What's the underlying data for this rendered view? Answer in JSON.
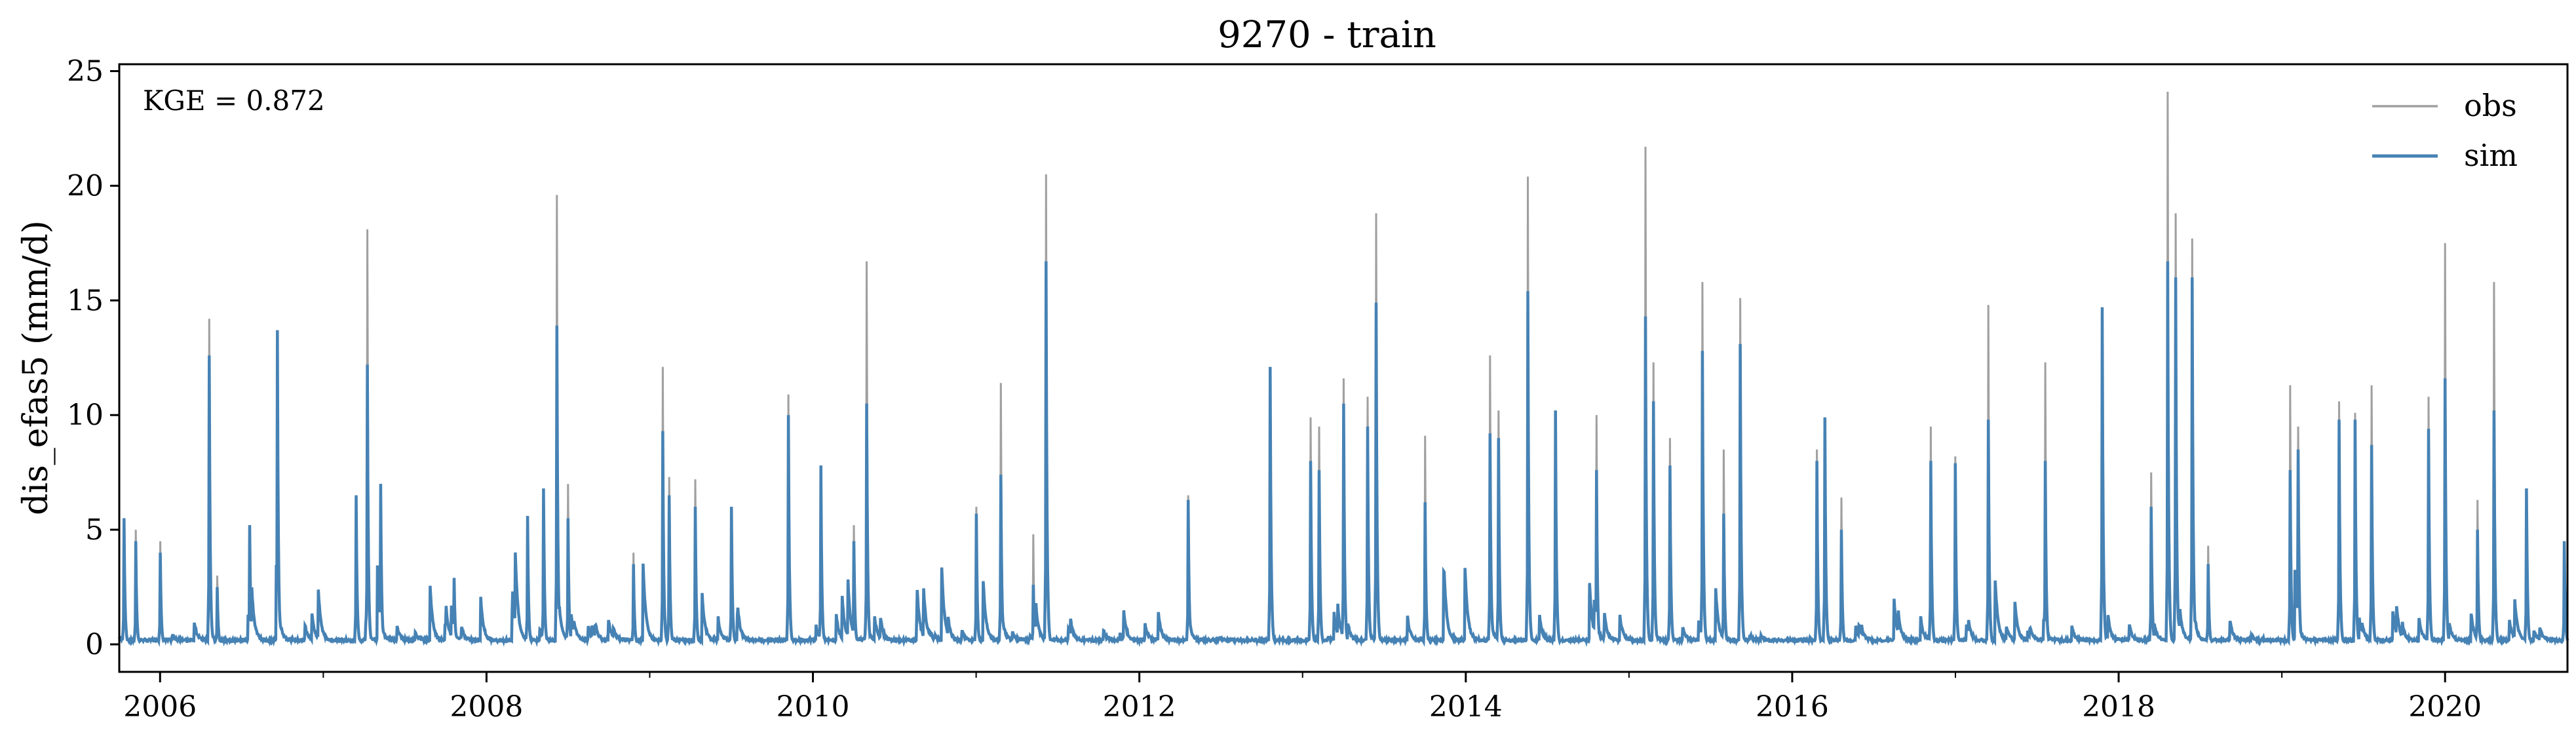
{
  "chart_data": {
    "type": "line",
    "title": "9270 - train",
    "xlabel": "",
    "ylabel": "dis_efas5 (mm/d)",
    "annotation": "KGE = 0.872",
    "xlim": [
      2005.75,
      2020.75
    ],
    "ylim": [
      -1.2,
      25.3
    ],
    "xticks": [
      2006,
      2008,
      2010,
      2012,
      2014,
      2016,
      2018,
      2020
    ],
    "xtick_labels": [
      "2006",
      "2008",
      "2010",
      "2012",
      "2014",
      "2016",
      "2018",
      "2020"
    ],
    "yticks": [
      0,
      5,
      10,
      15,
      20,
      25
    ],
    "ytick_labels": [
      "0",
      "5",
      "10",
      "15",
      "20",
      "25"
    ],
    "grid": false,
    "legend_position": "top-right",
    "colors": {
      "obs": "#a0a0a0",
      "sim": "#4682b4"
    },
    "series": [
      {
        "name": "obs",
        "peaks": [
          [
            2005.78,
            5.5
          ],
          [
            2005.85,
            5.0
          ],
          [
            2006.0,
            4.5
          ],
          [
            2006.3,
            14.2
          ],
          [
            2006.35,
            3.0
          ],
          [
            2006.55,
            5.2
          ],
          [
            2006.72,
            13.7
          ],
          [
            2007.2,
            6.5
          ],
          [
            2007.27,
            18.1
          ],
          [
            2007.35,
            7.0
          ],
          [
            2007.8,
            2.9
          ],
          [
            2008.25,
            5.6
          ],
          [
            2008.35,
            6.8
          ],
          [
            2008.43,
            19.6
          ],
          [
            2008.5,
            7.0
          ],
          [
            2008.9,
            4.0
          ],
          [
            2009.08,
            12.1
          ],
          [
            2009.12,
            7.3
          ],
          [
            2009.28,
            7.2
          ],
          [
            2009.5,
            6.0
          ],
          [
            2009.85,
            10.9
          ],
          [
            2010.05,
            7.8
          ],
          [
            2010.25,
            5.2
          ],
          [
            2010.33,
            16.7
          ],
          [
            2011.0,
            6.0
          ],
          [
            2011.15,
            11.4
          ],
          [
            2011.35,
            4.8
          ],
          [
            2011.43,
            20.5
          ],
          [
            2012.3,
            6.5
          ],
          [
            2012.8,
            12.1
          ],
          [
            2013.05,
            9.9
          ],
          [
            2013.1,
            9.5
          ],
          [
            2013.25,
            11.6
          ],
          [
            2013.4,
            10.8
          ],
          [
            2013.45,
            18.8
          ],
          [
            2013.75,
            9.1
          ],
          [
            2014.15,
            12.6
          ],
          [
            2014.2,
            10.2
          ],
          [
            2014.38,
            20.4
          ],
          [
            2014.55,
            10.2
          ],
          [
            2014.8,
            10.0
          ],
          [
            2015.1,
            21.7
          ],
          [
            2015.15,
            12.3
          ],
          [
            2015.25,
            9.0
          ],
          [
            2015.45,
            15.8
          ],
          [
            2015.58,
            8.5
          ],
          [
            2015.68,
            15.1
          ],
          [
            2016.15,
            8.5
          ],
          [
            2016.2,
            9.9
          ],
          [
            2016.3,
            6.4
          ],
          [
            2016.85,
            9.5
          ],
          [
            2017.0,
            8.2
          ],
          [
            2017.2,
            14.8
          ],
          [
            2017.55,
            12.3
          ],
          [
            2017.9,
            14.7
          ],
          [
            2018.2,
            7.5
          ],
          [
            2018.3,
            24.1
          ],
          [
            2018.35,
            18.8
          ],
          [
            2018.45,
            17.7
          ],
          [
            2018.55,
            4.3
          ],
          [
            2019.05,
            11.3
          ],
          [
            2019.1,
            9.5
          ],
          [
            2019.35,
            10.6
          ],
          [
            2019.45,
            10.1
          ],
          [
            2019.55,
            11.3
          ],
          [
            2019.9,
            10.8
          ],
          [
            2020.0,
            17.5
          ],
          [
            2020.2,
            6.3
          ],
          [
            2020.3,
            15.8
          ],
          [
            2020.5,
            6.8
          ],
          [
            2020.73,
            4.5
          ]
        ]
      },
      {
        "name": "sim",
        "peaks": [
          [
            2005.78,
            5.5
          ],
          [
            2005.85,
            4.5
          ],
          [
            2006.0,
            4.0
          ],
          [
            2006.3,
            12.6
          ],
          [
            2006.35,
            2.5
          ],
          [
            2006.55,
            5.2
          ],
          [
            2006.72,
            13.7
          ],
          [
            2007.2,
            6.5
          ],
          [
            2007.27,
            12.2
          ],
          [
            2007.35,
            7.0
          ],
          [
            2007.8,
            2.9
          ],
          [
            2008.25,
            5.6
          ],
          [
            2008.35,
            6.8
          ],
          [
            2008.43,
            13.9
          ],
          [
            2008.5,
            5.5
          ],
          [
            2008.9,
            3.5
          ],
          [
            2009.08,
            9.3
          ],
          [
            2009.12,
            6.5
          ],
          [
            2009.28,
            6.0
          ],
          [
            2009.5,
            6.0
          ],
          [
            2009.85,
            10.0
          ],
          [
            2010.05,
            7.8
          ],
          [
            2010.25,
            4.5
          ],
          [
            2010.33,
            10.5
          ],
          [
            2011.0,
            5.7
          ],
          [
            2011.15,
            7.4
          ],
          [
            2011.35,
            2.6
          ],
          [
            2011.43,
            16.7
          ],
          [
            2012.3,
            6.3
          ],
          [
            2012.8,
            12.1
          ],
          [
            2013.05,
            8.0
          ],
          [
            2013.1,
            7.6
          ],
          [
            2013.25,
            10.5
          ],
          [
            2013.4,
            9.5
          ],
          [
            2013.45,
            14.9
          ],
          [
            2013.75,
            6.2
          ],
          [
            2014.15,
            9.2
          ],
          [
            2014.2,
            9.0
          ],
          [
            2014.38,
            15.4
          ],
          [
            2014.55,
            10.2
          ],
          [
            2014.8,
            7.6
          ],
          [
            2015.1,
            14.3
          ],
          [
            2015.15,
            10.6
          ],
          [
            2015.25,
            7.8
          ],
          [
            2015.45,
            12.8
          ],
          [
            2015.58,
            5.7
          ],
          [
            2015.68,
            13.1
          ],
          [
            2016.15,
            8.0
          ],
          [
            2016.2,
            9.9
          ],
          [
            2016.3,
            5.0
          ],
          [
            2016.85,
            8.0
          ],
          [
            2017.0,
            7.9
          ],
          [
            2017.2,
            9.8
          ],
          [
            2017.55,
            8.0
          ],
          [
            2017.9,
            14.7
          ],
          [
            2018.2,
            6.0
          ],
          [
            2018.3,
            16.7
          ],
          [
            2018.35,
            16.0
          ],
          [
            2018.45,
            16.0
          ],
          [
            2018.55,
            3.5
          ],
          [
            2019.05,
            7.6
          ],
          [
            2019.1,
            8.5
          ],
          [
            2019.35,
            9.8
          ],
          [
            2019.45,
            9.8
          ],
          [
            2019.55,
            8.7
          ],
          [
            2019.9,
            9.4
          ],
          [
            2020.0,
            11.6
          ],
          [
            2020.2,
            5.0
          ],
          [
            2020.3,
            10.2
          ],
          [
            2020.5,
            6.8
          ],
          [
            2020.73,
            4.5
          ]
        ]
      }
    ]
  }
}
